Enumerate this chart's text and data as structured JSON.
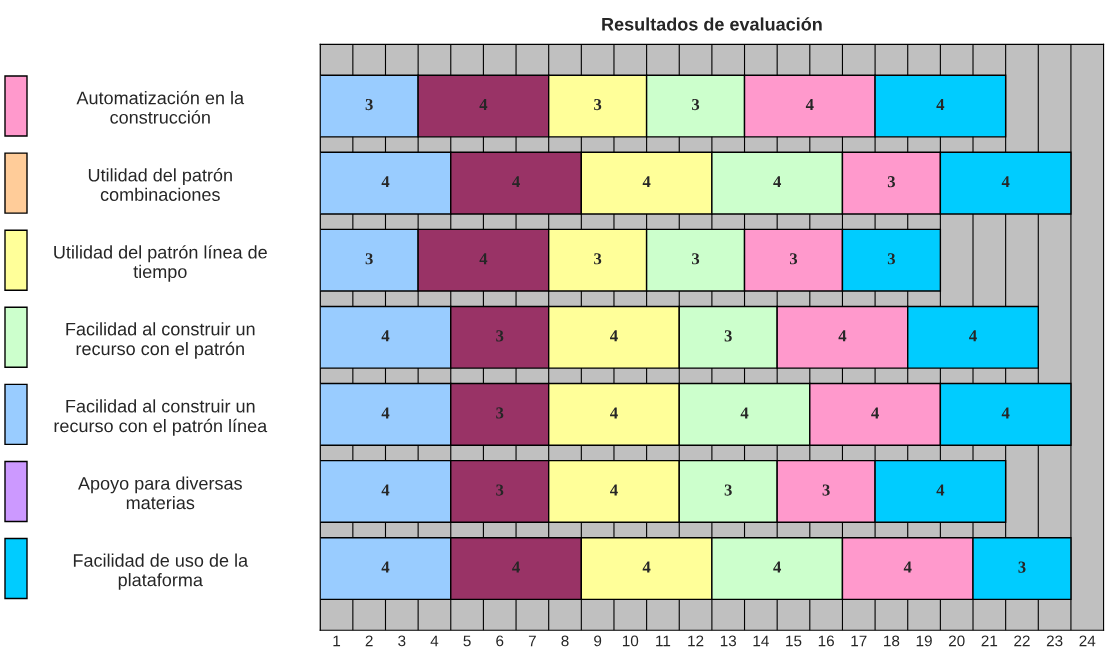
{
  "chart_data": {
    "type": "bar",
    "orientation": "horizontal",
    "stacked": true,
    "title": "Resultados de evaluación",
    "categories": [
      "Automatización en la\nconstrucción",
      "Utilidad del patrón\ncombinaciones",
      "Utilidad del patrón línea de\ntiempo",
      "Facilidad al construir un\nrecurso con el patrón",
      "Facilidad al construir un\nrecurso con el patrón línea",
      "Apoyo para diversas\nmaterias",
      "Facilidad de uso de la\nplataforma"
    ],
    "series": [
      {
        "color": "#99ccff",
        "values": [
          3,
          4,
          3,
          4,
          4,
          4,
          4
        ]
      },
      {
        "color": "#993366",
        "values": [
          4,
          4,
          4,
          3,
          3,
          3,
          4
        ]
      },
      {
        "color": "#ffff99",
        "values": [
          3,
          4,
          3,
          4,
          4,
          4,
          4
        ]
      },
      {
        "color": "#ccffcc",
        "values": [
          3,
          4,
          3,
          3,
          4,
          3,
          4
        ]
      },
      {
        "color": "#ff99cc",
        "values": [
          4,
          3,
          3,
          4,
          4,
          3,
          4
        ]
      },
      {
        "color": "#00ccff",
        "values": [
          4,
          4,
          3,
          4,
          4,
          4,
          3
        ]
      }
    ],
    "data_labels": true,
    "xlim": [
      0,
      24
    ],
    "xticks": [
      {
        "value": 0.5,
        "label": "1"
      },
      {
        "value": 1.5,
        "label": "2"
      },
      {
        "value": 2.5,
        "label": "3"
      },
      {
        "value": 3.5,
        "label": "4"
      },
      {
        "value": 4.5,
        "label": "5"
      },
      {
        "value": 5.5,
        "label": "6"
      },
      {
        "value": 6.5,
        "label": "7"
      },
      {
        "value": 7.5,
        "label": "8"
      },
      {
        "value": 8.5,
        "label": "9"
      },
      {
        "value": 9.5,
        "label": "10"
      },
      {
        "value": 10.5,
        "label": "11"
      },
      {
        "value": 11.5,
        "label": "12"
      },
      {
        "value": 12.5,
        "label": "13"
      },
      {
        "value": 13.5,
        "label": "14"
      },
      {
        "value": 14.5,
        "label": "15"
      },
      {
        "value": 15.5,
        "label": "16"
      },
      {
        "value": 16.5,
        "label": "17"
      },
      {
        "value": 17.5,
        "label": "18"
      },
      {
        "value": 18.5,
        "label": "19"
      },
      {
        "value": 19.5,
        "label": "20"
      },
      {
        "value": 20.5,
        "label": "21"
      },
      {
        "value": 21.5,
        "label": "22"
      },
      {
        "value": 22.5,
        "label": "23"
      },
      {
        "value": 23.5,
        "label": "24"
      }
    ],
    "grid": "x",
    "legend": false
  }
}
